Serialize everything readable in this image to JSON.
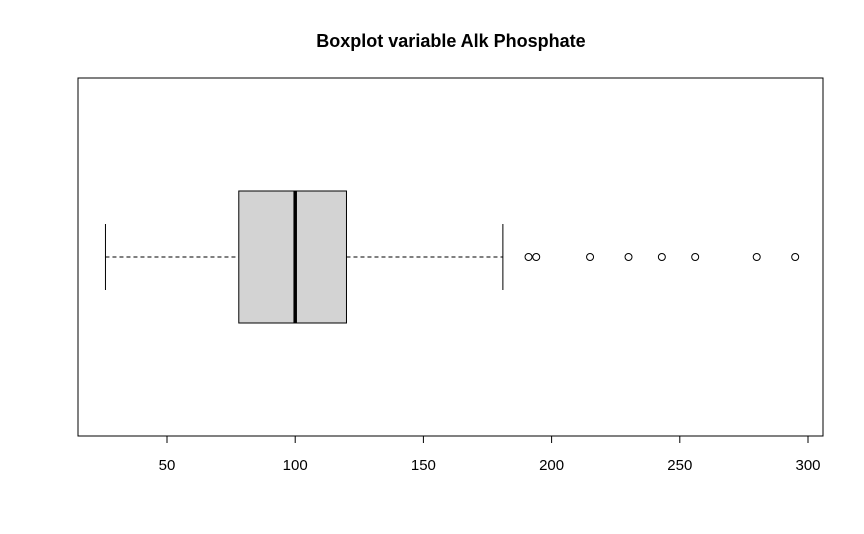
{
  "chart_data": {
    "type": "boxplot",
    "orientation": "horizontal",
    "title": "Boxplot variable Alk Phosphate",
    "xlabel": "",
    "ylabel": "",
    "xlim": [
      20,
      300
    ],
    "x_ticks": [
      50,
      100,
      150,
      200,
      250,
      300
    ],
    "grid": false,
    "box": {
      "whisker_low": 26,
      "q1": 78,
      "median": 100,
      "q3": 120,
      "whisker_high": 181
    },
    "outliers": [
      191,
      194,
      215,
      230,
      243,
      256,
      280,
      295
    ],
    "box_fill": "#d3d3d3",
    "line_color": "#000000"
  }
}
